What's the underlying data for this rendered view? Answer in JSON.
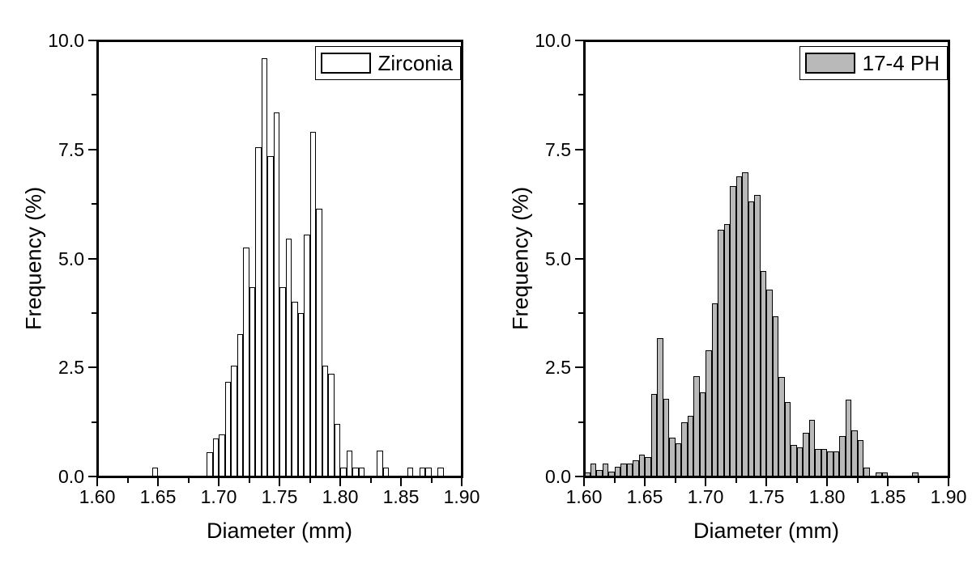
{
  "figure": {
    "background": "#ffffff",
    "frame_color": "#000000",
    "panels": [
      "Zirconia",
      "17-4 PH"
    ]
  },
  "chart_data": [
    {
      "type": "bar",
      "name": "zirconia-histogram",
      "legend": "Zirconia",
      "xlabel": "Diameter (mm)",
      "ylabel": "Frequency (%)",
      "xlim": [
        1.6,
        1.9
      ],
      "ylim": [
        0,
        10
      ],
      "x_tick_labels": [
        "1.60",
        "1.65",
        "1.70",
        "1.75",
        "1.80",
        "1.85",
        "1.90"
      ],
      "y_tick_labels": [
        "0.0",
        "2.5",
        "5.0",
        "7.5",
        "10.0"
      ],
      "x_major_step": 0.05,
      "x_minor_step": 0.025,
      "y_major_step": 2.5,
      "y_minor_step": 1.25,
      "grid": false,
      "legend_position": "top-right",
      "bin_width": 0.005,
      "bar_fill": "#ffffff",
      "bar_edge": "#000000",
      "bins": [
        [
          1.645,
          0.2
        ],
        [
          1.69,
          0.55
        ],
        [
          1.695,
          0.87
        ],
        [
          1.7,
          0.97
        ],
        [
          1.705,
          2.17
        ],
        [
          1.71,
          2.54
        ],
        [
          1.715,
          3.27
        ],
        [
          1.72,
          5.25
        ],
        [
          1.725,
          4.35
        ],
        [
          1.73,
          7.55
        ],
        [
          1.735,
          9.6
        ],
        [
          1.74,
          7.35
        ],
        [
          1.745,
          8.35
        ],
        [
          1.75,
          4.35
        ],
        [
          1.755,
          5.45
        ],
        [
          1.76,
          4.0
        ],
        [
          1.765,
          3.75
        ],
        [
          1.77,
          5.55
        ],
        [
          1.775,
          7.9
        ],
        [
          1.78,
          6.15
        ],
        [
          1.785,
          2.55
        ],
        [
          1.79,
          2.35
        ],
        [
          1.795,
          1.2
        ],
        [
          1.8,
          0.2
        ],
        [
          1.805,
          0.6
        ],
        [
          1.81,
          0.2
        ],
        [
          1.815,
          0.2
        ],
        [
          1.83,
          0.6
        ],
        [
          1.835,
          0.2
        ],
        [
          1.855,
          0.2
        ],
        [
          1.865,
          0.2
        ],
        [
          1.87,
          0.2
        ],
        [
          1.88,
          0.2
        ]
      ]
    },
    {
      "type": "bar",
      "name": "17-4-ph-histogram",
      "legend": "17-4 PH",
      "xlabel": "Diameter (mm)",
      "ylabel": "Frequency (%)",
      "xlim": [
        1.6,
        1.9
      ],
      "ylim": [
        0,
        10
      ],
      "x_tick_labels": [
        "1.60",
        "1.65",
        "1.70",
        "1.75",
        "1.80",
        "1.85",
        "1.90"
      ],
      "y_tick_labels": [
        "0.0",
        "2.5",
        "5.0",
        "7.5",
        "10.0"
      ],
      "x_major_step": 0.05,
      "x_minor_step": 0.025,
      "y_major_step": 2.5,
      "y_minor_step": 1.25,
      "grid": false,
      "legend_position": "top-right",
      "bin_width": 0.005,
      "bar_fill": "#b9b9b9",
      "bar_edge": "#000000",
      "bins": [
        [
          1.6,
          0.1
        ],
        [
          1.605,
          0.3
        ],
        [
          1.61,
          0.15
        ],
        [
          1.615,
          0.3
        ],
        [
          1.62,
          0.12
        ],
        [
          1.625,
          0.22
        ],
        [
          1.63,
          0.3
        ],
        [
          1.635,
          0.3
        ],
        [
          1.64,
          0.37
        ],
        [
          1.645,
          0.5
        ],
        [
          1.65,
          0.45
        ],
        [
          1.655,
          1.9
        ],
        [
          1.66,
          3.17
        ],
        [
          1.665,
          1.78
        ],
        [
          1.67,
          0.89
        ],
        [
          1.675,
          0.77
        ],
        [
          1.68,
          1.25
        ],
        [
          1.685,
          1.39
        ],
        [
          1.69,
          2.3
        ],
        [
          1.695,
          1.93
        ],
        [
          1.7,
          2.9
        ],
        [
          1.705,
          3.97
        ],
        [
          1.71,
          5.66
        ],
        [
          1.715,
          5.78
        ],
        [
          1.72,
          6.67
        ],
        [
          1.725,
          6.88
        ],
        [
          1.73,
          6.98
        ],
        [
          1.735,
          6.3
        ],
        [
          1.74,
          6.46
        ],
        [
          1.745,
          4.71
        ],
        [
          1.75,
          4.28
        ],
        [
          1.755,
          3.67
        ],
        [
          1.76,
          2.28
        ],
        [
          1.765,
          1.71
        ],
        [
          1.77,
          0.72
        ],
        [
          1.775,
          0.66
        ],
        [
          1.78,
          1.0
        ],
        [
          1.785,
          1.3
        ],
        [
          1.79,
          0.63
        ],
        [
          1.795,
          0.63
        ],
        [
          1.8,
          0.58
        ],
        [
          1.805,
          0.58
        ],
        [
          1.81,
          0.92
        ],
        [
          1.815,
          1.76
        ],
        [
          1.82,
          1.06
        ],
        [
          1.825,
          0.83
        ],
        [
          1.83,
          0.2
        ],
        [
          1.84,
          0.1
        ],
        [
          1.845,
          0.1
        ],
        [
          1.87,
          0.1
        ]
      ]
    }
  ]
}
